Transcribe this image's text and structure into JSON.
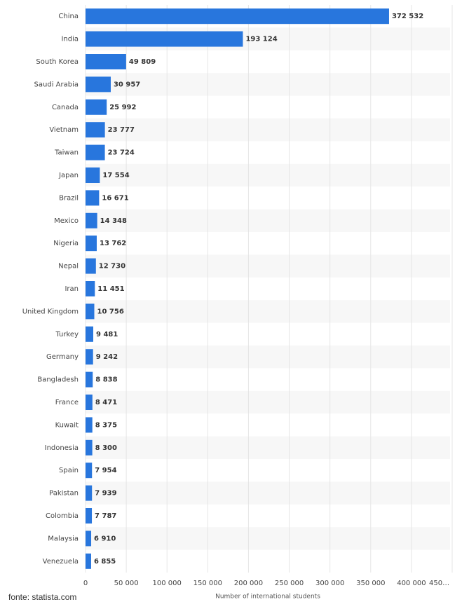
{
  "chart_data": {
    "type": "bar",
    "orientation": "horizontal",
    "categories": [
      "China",
      "India",
      "South Korea",
      "Saudi Arabia",
      "Canada",
      "Vietnam",
      "Taiwan",
      "Japan",
      "Brazil",
      "Mexico",
      "Nigeria",
      "Nepal",
      "Iran",
      "United Kingdom",
      "Turkey",
      "Germany",
      "Bangladesh",
      "France",
      "Kuwait",
      "Indonesia",
      "Spain",
      "Pakistan",
      "Colombia",
      "Malaysia",
      "Venezuela"
    ],
    "values": [
      372532,
      193124,
      49809,
      30957,
      25992,
      23777,
      23724,
      17554,
      16671,
      14348,
      13762,
      12730,
      11451,
      10756,
      9481,
      9242,
      8838,
      8471,
      8375,
      8300,
      7954,
      7939,
      7787,
      6910,
      6855
    ],
    "value_labels": [
      "372 532",
      "193 124",
      "49 809",
      "30 957",
      "25 992",
      "23 777",
      "23 724",
      "17 554",
      "16 671",
      "14 348",
      "13 762",
      "12 730",
      "11 451",
      "10 756",
      "9 481",
      "9 242",
      "8 838",
      "8 471",
      "8 375",
      "8 300",
      "7 954",
      "7 939",
      "7 787",
      "6 910",
      "6 855"
    ],
    "color": "#2876dd",
    "xlabel": "Number of international students",
    "xlim": [
      0,
      450000
    ],
    "xticks": [
      0,
      {
        "value": 50000,
        "label": "50 000"
      },
      {
        "value": 100000,
        "label": "100 000"
      },
      {
        "value": 150000,
        "label": "150 000"
      },
      {
        "value": 200000,
        "label": "200 000"
      },
      {
        "value": 250000,
        "label": "250 000"
      },
      {
        "value": 300000,
        "label": "300 000"
      },
      {
        "value": 350000,
        "label": "350 000"
      },
      {
        "value": 400000,
        "label": "400 000"
      },
      {
        "value": 450000,
        "label": "450…"
      }
    ],
    "grid": true,
    "source": "fonte: statista.com"
  }
}
